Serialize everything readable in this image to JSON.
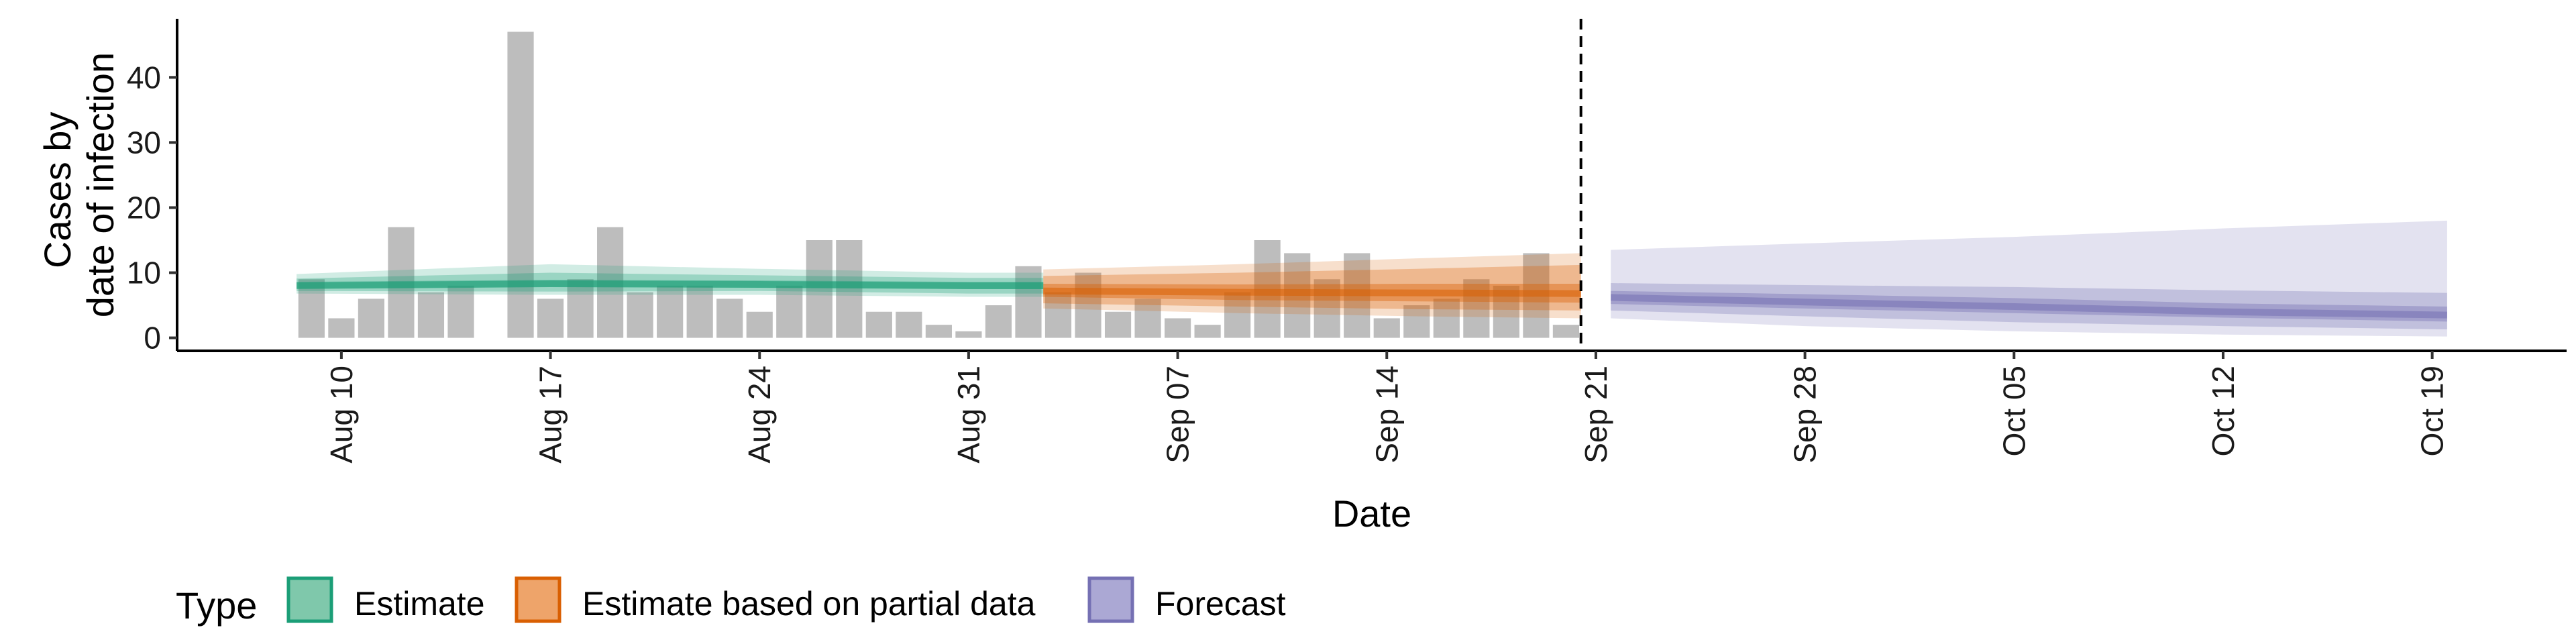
{
  "chart_data": {
    "type": "bar",
    "xlabel": "Date",
    "ylabel_lines": [
      "Cases by",
      "date of infection"
    ],
    "x_ticks": [
      "Aug 10",
      "Aug 17",
      "Aug 24",
      "Aug 31",
      "Sep 07",
      "Sep 14",
      "Sep 21",
      "Sep 28",
      "Oct 05",
      "Oct 12",
      "Oct 19"
    ],
    "x_tick_offsets_days": [
      0,
      7,
      14,
      21,
      28,
      35,
      42,
      49,
      56,
      63,
      70
    ],
    "y_ticks": [
      0,
      10,
      20,
      30,
      40
    ],
    "ylim": [
      -2,
      49
    ],
    "xlim_days": [
      -5.5,
      74.5
    ],
    "forecast_cutoff_day": 41.5,
    "bars": {
      "start_date": "Aug 09",
      "values": [
        9,
        3,
        6,
        17,
        7,
        8,
        0,
        47,
        6,
        9,
        17,
        7,
        8,
        8,
        6,
        4,
        8,
        15,
        15,
        4,
        4,
        2,
        1,
        5,
        11,
        7,
        10,
        4,
        6,
        3,
        2,
        7,
        15,
        13,
        9,
        13,
        3,
        5,
        6,
        9,
        8,
        13,
        2
      ],
      "color": "#bdbdbd"
    },
    "legend": {
      "title": "Type",
      "position": "bottom",
      "items": [
        {
          "label": "Estimate",
          "fill": "#7fc8ab",
          "stroke": "#1b9e77"
        },
        {
          "label": "Estimate based on partial data",
          "fill": "#eea46a",
          "stroke": "#d95f02"
        },
        {
          "label": "Forecast",
          "fill": "#aba8d4",
          "stroke": "#7570b3"
        }
      ]
    },
    "series": [
      {
        "name": "Estimate",
        "color": "#1b9e77",
        "days": [
          -1.5,
          7,
          14,
          21,
          23.5
        ],
        "median": [
          8,
          8.3,
          8.2,
          8,
          8
        ],
        "ci50": [
          [
            7.6,
            8.6
          ],
          [
            7.8,
            8.9
          ],
          [
            7.7,
            8.8
          ],
          [
            7.5,
            8.6
          ],
          [
            7.5,
            8.6
          ]
        ],
        "ci90": [
          [
            7.2,
            9.1
          ],
          [
            7.1,
            10
          ],
          [
            7.2,
            9.6
          ],
          [
            6.8,
            9.2
          ],
          [
            6.8,
            9.2
          ]
        ],
        "ci95": [
          [
            6.8,
            9.8
          ],
          [
            6.6,
            11.3
          ],
          [
            6.6,
            10.6
          ],
          [
            6.3,
            10
          ],
          [
            6.3,
            10
          ]
        ]
      },
      {
        "name": "Estimate based on partial data",
        "color": "#d95f02",
        "days": [
          23.5,
          30,
          36,
          41.5
        ],
        "median": [
          7.2,
          7,
          6.9,
          6.8
        ],
        "ci50": [
          [
            6.3,
            8.3
          ],
          [
            5.8,
            8.2
          ],
          [
            5.6,
            8.3
          ],
          [
            5.4,
            8.3
          ]
        ],
        "ci90": [
          [
            5.3,
            9.5
          ],
          [
            4.8,
            10
          ],
          [
            4.4,
            10.6
          ],
          [
            4.2,
            11.2
          ]
        ],
        "ci95": [
          [
            4.5,
            10.5
          ],
          [
            3.8,
            11.3
          ],
          [
            3.3,
            12.2
          ],
          [
            3,
            13
          ]
        ]
      },
      {
        "name": "Forecast",
        "color": "#7570b3",
        "days": [
          42.5,
          49,
          56,
          63,
          70.5
        ],
        "median": [
          6.2,
          5.5,
          4.8,
          4,
          3.5
        ],
        "ci50": [
          [
            5.2,
            7.2
          ],
          [
            4.5,
            6.7
          ],
          [
            3.8,
            6.1
          ],
          [
            3.1,
            5.3
          ],
          [
            2.5,
            4.8
          ]
        ],
        "ci90": [
          [
            4.2,
            8.4
          ],
          [
            3.3,
            8.1
          ],
          [
            2.4,
            7.8
          ],
          [
            1.8,
            7.3
          ],
          [
            1.3,
            6.9
          ]
        ],
        "ci95": [
          [
            3,
            13.5
          ],
          [
            1.8,
            14.5
          ],
          [
            1,
            15.5
          ],
          [
            0.5,
            16.8
          ],
          [
            0.2,
            18
          ]
        ]
      }
    ]
  }
}
